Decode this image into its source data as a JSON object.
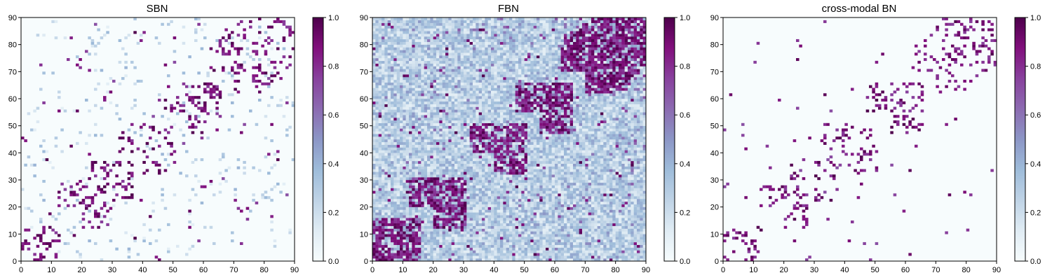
{
  "chart_data": [
    {
      "type": "heatmap",
      "title": "SBN",
      "xlabel": "",
      "ylabel": "",
      "x_range": [
        0,
        90
      ],
      "y_range": [
        0,
        90
      ],
      "x_ticks": [
        "0",
        "10",
        "20",
        "30",
        "40",
        "50",
        "60",
        "70",
        "80",
        "90"
      ],
      "y_ticks": [
        "0",
        "10",
        "20",
        "30",
        "40",
        "50",
        "60",
        "70",
        "80",
        "90"
      ],
      "colorbar": {
        "range": [
          0,
          1
        ],
        "ticks": [
          "0.0",
          "0.2",
          "0.4",
          "0.6",
          "0.8",
          "1.0"
        ]
      },
      "matrix_size": 90,
      "values": "sparse symmetric matrix; mostly ~0, strong (~1.0) entries along off-diagonal bands",
      "strong_bands": [
        [
          0,
          12
        ],
        [
          20,
          28
        ],
        [
          30,
          36
        ],
        [
          40,
          50
        ],
        [
          55,
          65
        ],
        [
          70,
          90
        ]
      ],
      "density": 0.05,
      "background_level": 0.02
    },
    {
      "type": "heatmap",
      "title": "FBN",
      "xlabel": "",
      "ylabel": "",
      "x_range": [
        0,
        90
      ],
      "y_range": [
        0,
        90
      ],
      "x_ticks": [
        "0",
        "10",
        "20",
        "30",
        "40",
        "50",
        "60",
        "70",
        "80",
        "90"
      ],
      "y_ticks": [
        "0",
        "10",
        "20",
        "30",
        "40",
        "50",
        "60",
        "70",
        "80",
        "90"
      ],
      "colorbar": {
        "range": [
          0,
          1
        ],
        "ticks": [
          "0.0",
          "0.2",
          "0.4",
          "0.6",
          "0.8",
          "1.0"
        ]
      },
      "matrix_size": 90,
      "values": "dense symmetric matrix; background ~0.15-0.45, strong (~0.8-1.0) blocks near diagonal",
      "strong_bands": [
        [
          0,
          15
        ],
        [
          20,
          30
        ],
        [
          40,
          50
        ],
        [
          55,
          65
        ],
        [
          70,
          90
        ]
      ],
      "density": 0.15,
      "background_level": 0.25
    },
    {
      "type": "heatmap",
      "title": "cross-modal BN",
      "xlabel": "",
      "ylabel": "",
      "x_range": [
        0,
        90
      ],
      "y_range": [
        0,
        90
      ],
      "x_ticks": [
        "0",
        "10",
        "20",
        "30",
        "40",
        "50",
        "60",
        "70",
        "80",
        "90"
      ],
      "y_ticks": [
        "0",
        "10",
        "20",
        "30",
        "40",
        "50",
        "60",
        "70",
        "80",
        "90"
      ],
      "colorbar": {
        "range": [
          0,
          1
        ],
        "ticks": [
          "0.0",
          "0.2",
          "0.4",
          "0.6",
          "0.8",
          "1.0"
        ]
      },
      "matrix_size": 90,
      "values": "sparse symmetric matrix; mostly ~0, strong (~1.0) entries along off-diagonal bands",
      "strong_bands": [
        [
          0,
          12
        ],
        [
          20,
          28
        ],
        [
          30,
          36
        ],
        [
          40,
          50
        ],
        [
          55,
          65
        ],
        [
          70,
          90
        ]
      ],
      "density": 0.045,
      "background_level": 0.0
    }
  ],
  "colormap": {
    "name": "BuPu",
    "stops": [
      "#f7fcfd",
      "#e0ecf4",
      "#bfd3e6",
      "#9ebcda",
      "#8c96c6",
      "#8c6bb1",
      "#88419d",
      "#810f7c",
      "#4d004b"
    ]
  }
}
